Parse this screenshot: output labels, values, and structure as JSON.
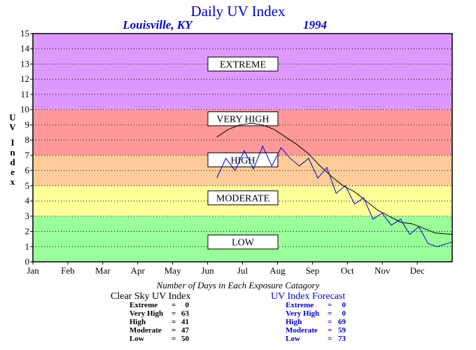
{
  "chart_data": {
    "type": "line",
    "title": "Daily UV Index",
    "location": "Louisville, KY",
    "year": "1994",
    "ylabel": "UV Index",
    "ylim": [
      0,
      15
    ],
    "yticks": [
      "0",
      "1",
      "2",
      "3",
      "4",
      "5",
      "6",
      "7",
      "8",
      "9",
      "10",
      "11",
      "12",
      "13",
      "14",
      "15"
    ],
    "xlim": [
      0,
      365
    ],
    "months": [
      "Jan",
      "Feb",
      "Mar",
      "Apr",
      "May",
      "Jun",
      "Jul",
      "Aug",
      "Sep",
      "Oct",
      "Nov",
      "Dec"
    ],
    "bands": [
      {
        "label": "LOW",
        "from": 0,
        "to": 3,
        "color": "#99ff99"
      },
      {
        "label": "MODERATE",
        "from": 3,
        "to": 5,
        "color": "#ffff99"
      },
      {
        "label": "HIGH",
        "from": 5,
        "to": 7,
        "color": "#ffcc99"
      },
      {
        "label": "VERY HIGH",
        "from": 7,
        "to": 10,
        "color": "#ff9999"
      },
      {
        "label": "EXTREME",
        "from": 10,
        "to": 15,
        "color": "#dd99ff"
      }
    ],
    "series": [
      {
        "color": "#000000",
        "x": [
          160,
          170,
          180,
          190,
          200,
          210,
          220,
          230,
          240,
          250,
          260,
          270,
          280,
          290,
          300,
          310,
          320,
          330,
          340,
          350,
          365
        ],
        "y": [
          8.2,
          8.7,
          9.0,
          9.1,
          9.0,
          8.7,
          8.2,
          7.7,
          7.1,
          6.3,
          5.6,
          5.0,
          4.6,
          4.0,
          3.4,
          3.0,
          2.6,
          2.5,
          2.2,
          1.9,
          1.8
        ]
      },
      {
        "color": "#0000cc",
        "x": [
          160,
          168,
          176,
          184,
          192,
          200,
          208,
          216,
          224,
          232,
          240,
          248,
          256,
          264,
          272,
          280,
          288,
          296,
          304,
          312,
          320,
          328,
          336,
          344,
          352,
          365
        ],
        "y": [
          5.5,
          6.8,
          6.0,
          7.3,
          6.1,
          7.6,
          6.3,
          7.5,
          6.8,
          6.3,
          6.8,
          5.5,
          6.2,
          4.5,
          5.0,
          3.8,
          4.2,
          2.8,
          3.2,
          2.4,
          2.8,
          1.8,
          2.3,
          1.2,
          1.0,
          1.3
        ]
      }
    ]
  },
  "summary": {
    "title": "Number of Days in Each Exposure Catagory",
    "clear_sky": {
      "heading": "Clear Sky UV Index",
      "rows": [
        {
          "label": "Extreme",
          "value": "0"
        },
        {
          "label": "Very High",
          "value": "63"
        },
        {
          "label": "High",
          "value": "41"
        },
        {
          "label": "Moderate",
          "value": "47"
        },
        {
          "label": "Low",
          "value": "50"
        }
      ]
    },
    "forecast": {
      "heading": "UV Index Forecast",
      "rows": [
        {
          "label": "Extreme",
          "value": "0"
        },
        {
          "label": "Very High",
          "value": "0"
        },
        {
          "label": "High",
          "value": "69"
        },
        {
          "label": "Moderate",
          "value": "59"
        },
        {
          "label": "Low",
          "value": "73"
        }
      ]
    }
  }
}
